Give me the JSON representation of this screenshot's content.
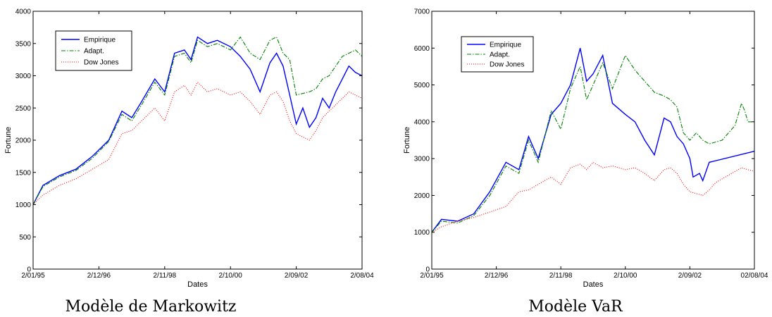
{
  "chart_data": [
    {
      "type": "line",
      "title": "",
      "caption": "Modèle de Markowitz",
      "xlabel": "Dates",
      "ylabel": "Fortune",
      "xticks": [
        "2/01/95",
        "2/12/96",
        "2/11/98",
        "2/10/00",
        "2/09/02",
        "2/08/04"
      ],
      "ylim": [
        0,
        4000
      ],
      "yticks": [
        0,
        500,
        1000,
        1500,
        2000,
        2500,
        3000,
        3500,
        4000
      ],
      "legend_position": "top-left",
      "grid": false,
      "series": [
        {
          "name": "Empirique",
          "color": "#0000ff",
          "style": "solid",
          "x": [
            0,
            0.03,
            0.08,
            0.13,
            0.18,
            0.23,
            0.27,
            0.3,
            0.33,
            0.37,
            0.4,
            0.43,
            0.46,
            0.48,
            0.5,
            0.53,
            0.56,
            0.6,
            0.63,
            0.66,
            0.69,
            0.72,
            0.74,
            0.76,
            0.78,
            0.8,
            0.82,
            0.84,
            0.86,
            0.88,
            0.9,
            0.92,
            0.94,
            0.96,
            0.98,
            1.0
          ],
          "values": [
            1000,
            1300,
            1450,
            1550,
            1750,
            2000,
            2450,
            2350,
            2600,
            2950,
            2750,
            3350,
            3400,
            3250,
            3600,
            3500,
            3550,
            3450,
            3300,
            3100,
            2750,
            3200,
            3350,
            3150,
            2700,
            2250,
            2500,
            2200,
            2350,
            2650,
            2500,
            2750,
            2950,
            3150,
            3050,
            3000
          ]
        },
        {
          "name": "Adapt.",
          "color": "#008000",
          "style": "dashdot",
          "x": [
            0,
            0.03,
            0.08,
            0.13,
            0.18,
            0.23,
            0.27,
            0.3,
            0.33,
            0.37,
            0.4,
            0.43,
            0.46,
            0.48,
            0.5,
            0.53,
            0.56,
            0.6,
            0.63,
            0.66,
            0.69,
            0.72,
            0.74,
            0.76,
            0.78,
            0.8,
            0.84,
            0.86,
            0.88,
            0.9,
            0.92,
            0.94,
            0.96,
            0.98,
            1.0
          ],
          "values": [
            1000,
            1280,
            1430,
            1530,
            1720,
            1980,
            2400,
            2300,
            2550,
            2900,
            2700,
            3300,
            3350,
            3200,
            3550,
            3450,
            3500,
            3400,
            3600,
            3350,
            3250,
            3550,
            3600,
            3350,
            3250,
            2700,
            2750,
            2800,
            2950,
            3000,
            3150,
            3300,
            3350,
            3400,
            3300
          ]
        },
        {
          "name": "Dow Jones",
          "color": "#ff0000",
          "style": "dotted",
          "x": [
            0,
            0.03,
            0.08,
            0.13,
            0.18,
            0.23,
            0.27,
            0.3,
            0.33,
            0.37,
            0.4,
            0.43,
            0.46,
            0.48,
            0.5,
            0.53,
            0.56,
            0.6,
            0.63,
            0.66,
            0.69,
            0.72,
            0.74,
            0.76,
            0.78,
            0.8,
            0.82,
            0.84,
            0.86,
            0.88,
            0.9,
            0.92,
            0.94,
            0.96,
            0.98,
            1.0
          ],
          "values": [
            1000,
            1150,
            1300,
            1400,
            1550,
            1700,
            2100,
            2150,
            2300,
            2500,
            2300,
            2750,
            2850,
            2700,
            2900,
            2750,
            2800,
            2700,
            2750,
            2600,
            2400,
            2700,
            2750,
            2600,
            2300,
            2100,
            2050,
            2000,
            2150,
            2350,
            2450,
            2550,
            2650,
            2750,
            2700,
            2650
          ]
        }
      ]
    },
    {
      "type": "line",
      "title": "",
      "caption": "Modèle VaR",
      "xlabel": "Dates",
      "ylabel": "Fortune",
      "xticks": [
        "2/01/95",
        "2/12/96",
        "2/11/98",
        "2/10/00",
        "2/09/02",
        "02/08/04"
      ],
      "ylim": [
        0,
        7000
      ],
      "yticks": [
        0,
        1000,
        2000,
        3000,
        4000,
        5000,
        6000,
        7000
      ],
      "legend_position": "top-left",
      "grid": false,
      "series": [
        {
          "name": "Empirique",
          "color": "#0000ff",
          "style": "solid",
          "x": [
            0,
            0.03,
            0.08,
            0.13,
            0.18,
            0.23,
            0.27,
            0.3,
            0.33,
            0.37,
            0.4,
            0.43,
            0.46,
            0.48,
            0.5,
            0.53,
            0.56,
            0.6,
            0.63,
            0.66,
            0.69,
            0.72,
            0.74,
            0.76,
            0.78,
            0.8,
            0.81,
            0.83,
            0.84,
            0.86,
            1.0
          ],
          "values": [
            1000,
            1350,
            1300,
            1500,
            2100,
            2900,
            2700,
            3600,
            3000,
            4200,
            4500,
            5000,
            6000,
            5100,
            5300,
            5800,
            4500,
            4200,
            4000,
            3500,
            3100,
            4100,
            4000,
            3600,
            3400,
            3000,
            2500,
            2600,
            2400,
            2900,
            3200
          ]
        },
        {
          "name": "Adapt.",
          "color": "#008000",
          "style": "dashdot",
          "x": [
            0,
            0.03,
            0.08,
            0.13,
            0.18,
            0.23,
            0.27,
            0.3,
            0.33,
            0.37,
            0.4,
            0.43,
            0.46,
            0.48,
            0.5,
            0.53,
            0.56,
            0.6,
            0.63,
            0.66,
            0.69,
            0.72,
            0.74,
            0.76,
            0.78,
            0.8,
            0.82,
            0.84,
            0.86,
            0.9,
            0.92,
            0.94,
            0.96,
            0.97,
            0.98,
            1.0
          ],
          "values": [
            1000,
            1300,
            1250,
            1450,
            2000,
            2800,
            2600,
            3500,
            2900,
            4300,
            3800,
            4900,
            5500,
            4600,
            5000,
            5600,
            4900,
            5800,
            5400,
            5100,
            4800,
            4700,
            4600,
            4400,
            3700,
            3500,
            3700,
            3500,
            3400,
            3500,
            3700,
            3900,
            4500,
            4300,
            4000,
            4000
          ]
        },
        {
          "name": "Dow Jones",
          "color": "#ff0000",
          "style": "dotted",
          "x": [
            0,
            0.03,
            0.08,
            0.13,
            0.18,
            0.23,
            0.27,
            0.3,
            0.33,
            0.37,
            0.4,
            0.43,
            0.46,
            0.48,
            0.5,
            0.53,
            0.56,
            0.6,
            0.63,
            0.66,
            0.69,
            0.72,
            0.74,
            0.76,
            0.78,
            0.8,
            0.82,
            0.84,
            0.86,
            0.88,
            0.9,
            0.92,
            0.94,
            0.96,
            0.98,
            1.0
          ],
          "values": [
            1000,
            1150,
            1300,
            1400,
            1550,
            1700,
            2100,
            2150,
            2300,
            2500,
            2300,
            2750,
            2850,
            2700,
            2900,
            2750,
            2800,
            2700,
            2750,
            2600,
            2400,
            2700,
            2750,
            2600,
            2300,
            2100,
            2050,
            2000,
            2150,
            2350,
            2450,
            2550,
            2650,
            2750,
            2700,
            2650
          ]
        }
      ]
    }
  ]
}
